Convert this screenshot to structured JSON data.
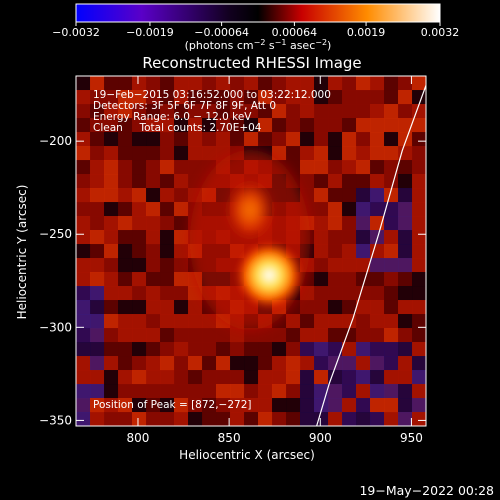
{
  "chart_data": {
    "type": "heatmap",
    "title": "Reconstructed RHESSI Image",
    "xlabel": "Heliocentric X (arcsec)",
    "ylabel": "Heliocentric Y (arcsec)",
    "xlim": [
      766,
      958
    ],
    "ylim": [
      -353,
      -165
    ],
    "x_ticks": [
      800,
      850,
      900,
      950
    ],
    "x_tick_labels": [
      "800",
      "850",
      "900",
      "950"
    ],
    "y_ticks": [
      -200,
      -250,
      -300,
      -350
    ],
    "y_tick_labels": [
      "−200",
      "−250",
      "−300",
      "−350"
    ],
    "colorbar": {
      "range": [
        -0.0032,
        0.0032
      ],
      "tick_values": [
        -0.0032,
        -0.0019,
        -0.00064,
        0.00064,
        0.0019,
        0.0032
      ],
      "tick_labels": [
        "−0.0032",
        "−0.0019",
        "−0.00064",
        "0.00064",
        "0.0019",
        "0.0032"
      ],
      "unit_text": "(photons cm",
      "unit_sup1": "−2",
      "unit_mid": " s",
      "unit_sup2": "−1",
      "unit_mid2": " asec",
      "unit_sup3": "−2",
      "unit_end": ")",
      "colors": [
        "#0000ff",
        "#5a00c8",
        "#000000",
        "#c80000",
        "#ff8c00",
        "#ffffff"
      ]
    },
    "annotations": [
      "19−Feb−2015 03:16:52.000 to 03:22:12.000",
      "Detectors: 3F 5F 6F 7F 8F 9F, Att 0",
      "Energy Range: 6.0 − 12.0 keV",
      "Clean     Total counts: 2.70E+04"
    ],
    "peak_label": "Position of Peak = [872,−272]",
    "peak": [
      872,
      -272
    ],
    "secondary_source": [
      862,
      -230
    ],
    "limb_curve": [
      [
        958,
        -170
      ],
      [
        945,
        -205
      ],
      [
        932,
        -250
      ],
      [
        918,
        -295
      ],
      [
        905,
        -330
      ],
      [
        898,
        -353
      ]
    ]
  },
  "footer": {
    "date": "19−May−2022 00:28"
  }
}
